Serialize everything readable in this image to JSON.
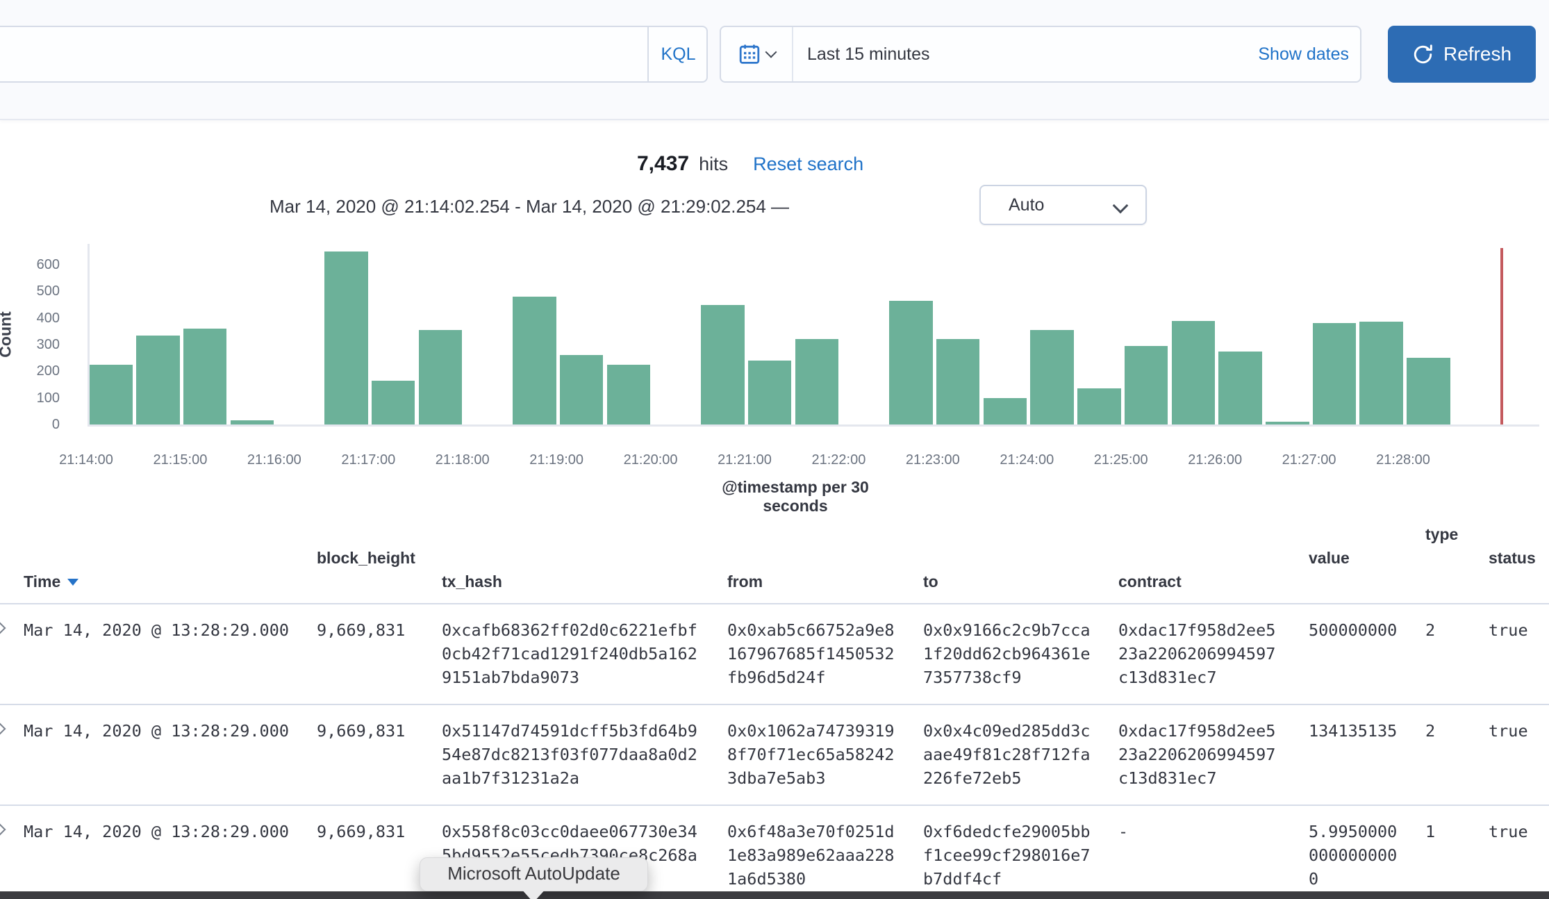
{
  "topbar": {
    "kql_label": "KQL",
    "time_range_value": "Last 15 minutes",
    "show_dates_label": "Show dates",
    "refresh_label": "Refresh"
  },
  "results": {
    "hits_count": "7,437",
    "hits_label": "hits",
    "reset_label": "Reset search",
    "date_range": "Mar 14, 2020 @ 21:14:02.254 - Mar 14, 2020 @ 21:29:02.254 —",
    "interval_value": "Auto"
  },
  "chart_data": {
    "type": "bar",
    "title": "",
    "xlabel": "@timestamp per 30 seconds",
    "ylabel": "Count",
    "ylim": [
      0,
      650
    ],
    "grid": false,
    "bar_color": "#6cb199",
    "y_ticks": [
      0,
      100,
      200,
      300,
      400,
      500,
      600
    ],
    "x_axis_labels": [
      "21:14:00",
      "21:15:00",
      "21:16:00",
      "21:17:00",
      "21:18:00",
      "21:19:00",
      "21:20:00",
      "21:21:00",
      "21:22:00",
      "21:23:00",
      "21:24:00",
      "21:25:00",
      "21:26:00",
      "21:27:00",
      "21:28:00"
    ],
    "buckets": [
      {
        "time": "21:14:00",
        "count": 225
      },
      {
        "time": "21:14:30",
        "count": 335
      },
      {
        "time": "21:15:00",
        "count": 360
      },
      {
        "time": "21:15:30",
        "count": 15
      },
      {
        "time": "21:16:00",
        "count": 0
      },
      {
        "time": "21:16:30",
        "count": 650
      },
      {
        "time": "21:17:00",
        "count": 165
      },
      {
        "time": "21:17:30",
        "count": 355
      },
      {
        "time": "21:18:00",
        "count": 0
      },
      {
        "time": "21:18:30",
        "count": 480
      },
      {
        "time": "21:19:00",
        "count": 260
      },
      {
        "time": "21:19:30",
        "count": 225
      },
      {
        "time": "21:20:00",
        "count": 0
      },
      {
        "time": "21:20:30",
        "count": 450
      },
      {
        "time": "21:21:00",
        "count": 240
      },
      {
        "time": "21:21:30",
        "count": 320
      },
      {
        "time": "21:22:00",
        "count": 0
      },
      {
        "time": "21:22:30",
        "count": 465
      },
      {
        "time": "21:23:00",
        "count": 320
      },
      {
        "time": "21:23:30",
        "count": 100
      },
      {
        "time": "21:24:00",
        "count": 355
      },
      {
        "time": "21:24:30",
        "count": 135
      },
      {
        "time": "21:25:00",
        "count": 295
      },
      {
        "time": "21:25:30",
        "count": 390
      },
      {
        "time": "21:26:00",
        "count": 275
      },
      {
        "time": "21:26:30",
        "count": 10
      },
      {
        "time": "21:27:00",
        "count": 380
      },
      {
        "time": "21:27:30",
        "count": 385
      },
      {
        "time": "21:28:00",
        "count": 250
      }
    ]
  },
  "table": {
    "sorted_by": "Time",
    "sort_direction": "desc",
    "columns": [
      {
        "id": "time",
        "label": "Time"
      },
      {
        "id": "block_height",
        "label": "block_height"
      },
      {
        "id": "tx_hash",
        "label": "tx_hash"
      },
      {
        "id": "from",
        "label": "from"
      },
      {
        "id": "to",
        "label": "to"
      },
      {
        "id": "contract",
        "label": "contract"
      },
      {
        "id": "value",
        "label": "value"
      },
      {
        "id": "type",
        "label": "type"
      },
      {
        "id": "status",
        "label": "status"
      }
    ],
    "rows": [
      {
        "time": "Mar 14, 2020 @ 13:28:29.000",
        "block_height": "9,669,831",
        "tx_hash": "0xcafb68362ff02d0c6221efbf0cb42f71cad1291f240db5a1629151ab7bda9073",
        "from": "0x0xab5c66752a9e8167967685f1450532fb96d5d24f",
        "to": "0x0x9166c2c9b7cca1f20dd62cb964361e7357738cf9",
        "contract": "0xdac17f958d2ee523a2206206994597c13d831ec7",
        "value": "500000000",
        "type": "2",
        "status": "true"
      },
      {
        "time": "Mar 14, 2020 @ 13:28:29.000",
        "block_height": "9,669,831",
        "tx_hash": "0x51147d74591dcff5b3fd64b954e87dc8213f03f077daa8a0d2aa1b7f31231a2a",
        "from": "0x0x1062a747393198f70f71ec65a582423dba7e5ab3",
        "to": "0x0x4c09ed285dd3caae49f81c28f712fa226fe72eb5",
        "contract": "0xdac17f958d2ee523a2206206994597c13d831ec7",
        "value": "134135135",
        "type": "2",
        "status": "true"
      },
      {
        "time": "Mar 14, 2020 @ 13:28:29.000",
        "block_height": "9,669,831",
        "tx_hash": "0x558f8c03cc0daee067730e345bd9552e55cedb7390ce8c268a",
        "from": "0x6f48a3e70f0251d1e83a989e62aaa2281a6d5380",
        "to": "0xf6dedcfe29005bbf1cee99cf298016e7b7ddf4cf",
        "contract": "-",
        "value": "5.99500000000000000",
        "type": "1",
        "status": "true"
      }
    ]
  },
  "tooltip": {
    "text": "Microsoft AutoUpdate"
  }
}
